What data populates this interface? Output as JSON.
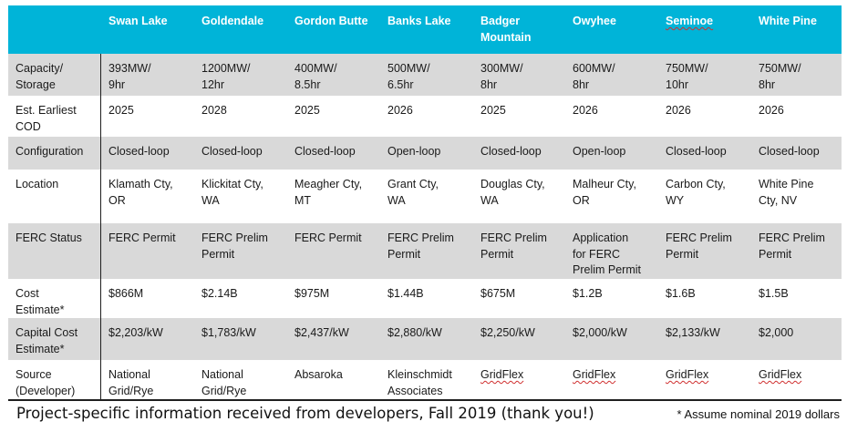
{
  "table": {
    "columns": [
      "",
      "Swan Lake",
      "Goldendale",
      "Gordon Butte",
      "Banks Lake",
      "Badger\nMountain",
      "Owyhee",
      "Seminoe",
      "White Pine"
    ],
    "rows": [
      {
        "label": "Capacity/\nStorage",
        "cells": [
          "393MW/\n9hr",
          "1200MW/\n12hr",
          "400MW/\n8.5hr",
          "500MW/\n6.5hr",
          "300MW/\n8hr",
          "600MW/\n8hr",
          "750MW/\n10hr",
          "750MW/\n8hr"
        ]
      },
      {
        "label": "Est. Earliest\nCOD",
        "cells": [
          "2025",
          "2028",
          "2025",
          "2026",
          "2025",
          "2026",
          "2026",
          "2026"
        ]
      },
      {
        "label": "Configuration",
        "cells": [
          "Closed-loop",
          "Closed-loop",
          "Closed-loop",
          "Open-loop",
          "Closed-loop",
          "Open-loop",
          "Closed-loop",
          "Closed-loop"
        ]
      },
      {
        "label": "Location",
        "cells": [
          "Klamath Cty,\nOR",
          "Klickitat Cty,\nWA",
          "Meagher Cty,\nMT",
          "Grant Cty,\nWA",
          "Douglas Cty,\nWA",
          "Malheur Cty,\nOR",
          "Carbon Cty,\nWY",
          "White Pine\nCty, NV"
        ]
      },
      {
        "label": "FERC Status",
        "cells": [
          "FERC Permit",
          "FERC Prelim\nPermit",
          "FERC Permit",
          "FERC Prelim\nPermit",
          "FERC Prelim\nPermit",
          "Application\nfor FERC\nPrelim Permit",
          "FERC Prelim\nPermit",
          "FERC Prelim\nPermit"
        ]
      },
      {
        "label": "Cost\nEstimate*",
        "cells": [
          "$866M",
          "$2.14B",
          "$975M",
          "$1.44B",
          "$675M",
          "$1.2B",
          "$1.6B",
          "$1.5B"
        ]
      },
      {
        "label": "Capital Cost\nEstimate*",
        "cells": [
          "$2,203/kW",
          "$1,783/kW",
          "$2,437/kW",
          "$2,880/kW",
          "$2,250/kW",
          "$2,000/kW",
          "$2,133/kW",
          "$2,000"
        ]
      },
      {
        "label": "Source\n(Developer)",
        "cells": [
          "National\nGrid/Rye",
          "National\nGrid/Rye",
          "Absaroka",
          "Kleinschmidt\nAssociates",
          "GridFlex",
          "GridFlex",
          "GridFlex",
          "GridFlex"
        ]
      }
    ]
  },
  "footnote": "Project-specific information received from developers, Fall 2019 (thank you!)",
  "footnote_assume": "* Assume nominal 2019 dollars",
  "colors": {
    "header_bg": "#00b4d8",
    "header_text": "#ffffff",
    "row_shade": "#d9d9d9"
  }
}
